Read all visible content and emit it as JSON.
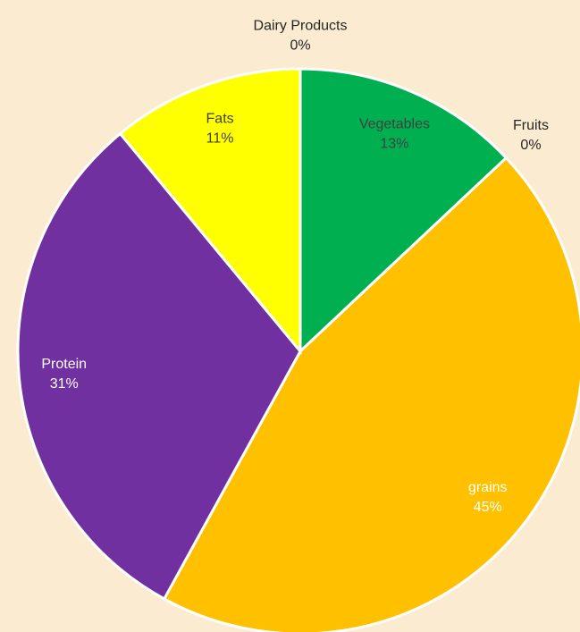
{
  "chart_data": {
    "type": "pie",
    "categories": [
      "Vegetables",
      "Fruits",
      "grains",
      "Protein",
      "Fats",
      "Dairy Products"
    ],
    "values": [
      13,
      0,
      45,
      31,
      11,
      0
    ],
    "value_labels": [
      "13%",
      "0%",
      "45%",
      "31%",
      "11%",
      "0%"
    ],
    "colors": [
      "#00b050",
      "#ff0000",
      "#ffc000",
      "#7030a0",
      "#ffff00",
      "#5b9bd5"
    ]
  }
}
